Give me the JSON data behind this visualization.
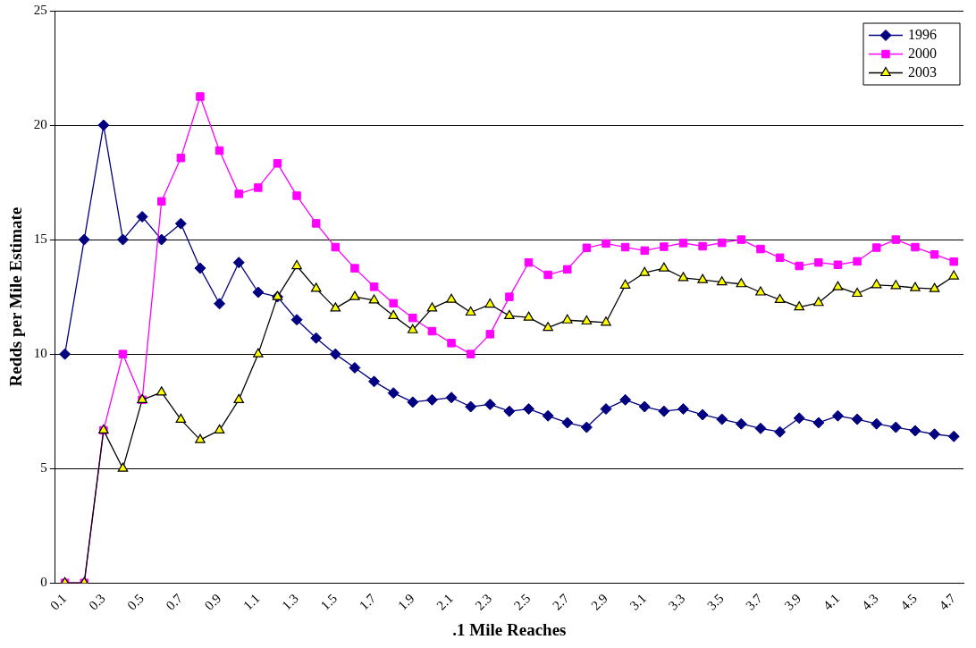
{
  "chart_data": {
    "type": "line",
    "xlabel": ".1 Mile Reaches",
    "ylabel": "Redds per Mile Estimate",
    "categories": [
      "0.1",
      null,
      "0.3",
      null,
      "0.5",
      null,
      "0.7",
      null,
      "0.9",
      null,
      "1.1",
      null,
      "1.3",
      null,
      "1.5",
      null,
      "1.7",
      null,
      "1.9",
      null,
      "2.1",
      null,
      "2.3",
      null,
      "2.5",
      null,
      "2.7",
      null,
      "2.9",
      null,
      "3.1",
      null,
      "3.3",
      null,
      "3.5",
      null,
      "3.7",
      null,
      "3.9",
      null,
      "4.1",
      null,
      "4.3",
      null,
      "4.5",
      null,
      "4.7"
    ],
    "series": [
      {
        "name": "1996",
        "color": "#000080",
        "marker": "diamond",
        "values": [
          10,
          15,
          20,
          15,
          16,
          15,
          15.7,
          13.75,
          12.2,
          14,
          12.7,
          12.5,
          11.5,
          10.7,
          10,
          9.4,
          8.8,
          8.3,
          7.9,
          8.0,
          8.1,
          7.7,
          7.8,
          7.5,
          7.6,
          7.3,
          7.0,
          6.8,
          7.6,
          8.0,
          7.7,
          7.5,
          7.6,
          7.35,
          7.15,
          6.95,
          6.75,
          6.6,
          7.2,
          7.0,
          7.3,
          7.15,
          6.95,
          6.8,
          6.65,
          6.5,
          6.4
        ]
      },
      {
        "name": "2000",
        "color": "#ff00ff",
        "marker": "square",
        "values": [
          0,
          0,
          6.67,
          10,
          8,
          16.67,
          18.57,
          21.25,
          18.89,
          17,
          17.27,
          18.33,
          16.92,
          15.71,
          14.67,
          13.75,
          12.94,
          12.22,
          11.58,
          11,
          10.48,
          10,
          10.87,
          12.5,
          14,
          13.46,
          13.7,
          14.64,
          14.83,
          14.67,
          14.52,
          14.69,
          14.85,
          14.71,
          14.86,
          15,
          14.59,
          14.21,
          13.85,
          14,
          13.9,
          14.05,
          14.65,
          15,
          14.67,
          14.35,
          14.04
        ]
      },
      {
        "name": "2003",
        "color": "#000000",
        "marker": "triangle",
        "colors": [
          "#ffff00",
          "#ffff00",
          "#ffff00",
          "#ffff00",
          "#ffff00",
          "#ffff00",
          "#ffff00",
          "#ffff00",
          "#ffff00",
          "#ffff00",
          "#ffff00",
          "#ffff00",
          "#ffff00",
          "#ffff00",
          "#ffff00",
          "#ffff00",
          "#ffff00",
          "#ffff00",
          "#ffff00",
          "#ffff00",
          "#ffff00",
          "#ffff00",
          "#ffff00",
          "#ffff00",
          "#ffff00",
          "#ffff00",
          "#ffff00",
          "#ffff00",
          "#ffff00",
          "#ffff00",
          "#ffff00",
          "#ffff00",
          "#ffff00",
          "#ffff00",
          "#ffff00",
          "#ffff00",
          "#ffff00",
          "#ffff00",
          "#ffff00",
          "#ffff00",
          "#ffff00",
          "#ffff00",
          "#ffff00",
          "#ffff00",
          "#ffff00",
          "#ffff00",
          "#ffff00"
        ],
        "values": [
          0,
          0,
          6.67,
          5,
          8,
          8.33,
          7.14,
          6.25,
          6.67,
          8,
          10,
          12.5,
          13.85,
          12.86,
          12,
          12.5,
          12.35,
          11.67,
          11.05,
          12,
          12.38,
          11.82,
          12.17,
          11.67,
          11.6,
          11.15,
          11.48,
          11.43,
          11.38,
          13,
          13.55,
          13.75,
          13.33,
          13.24,
          13.14,
          13.06,
          12.7,
          12.37,
          12.05,
          12.24,
          12.93,
          12.64,
          13.02,
          12.98,
          12.89,
          12.85,
          13.4
        ]
      }
    ],
    "ylim": [
      0,
      25
    ],
    "yticks": [
      0,
      5,
      10,
      15,
      20,
      25
    ],
    "grid": "y",
    "legend": "top right",
    "line_style": "solid"
  }
}
